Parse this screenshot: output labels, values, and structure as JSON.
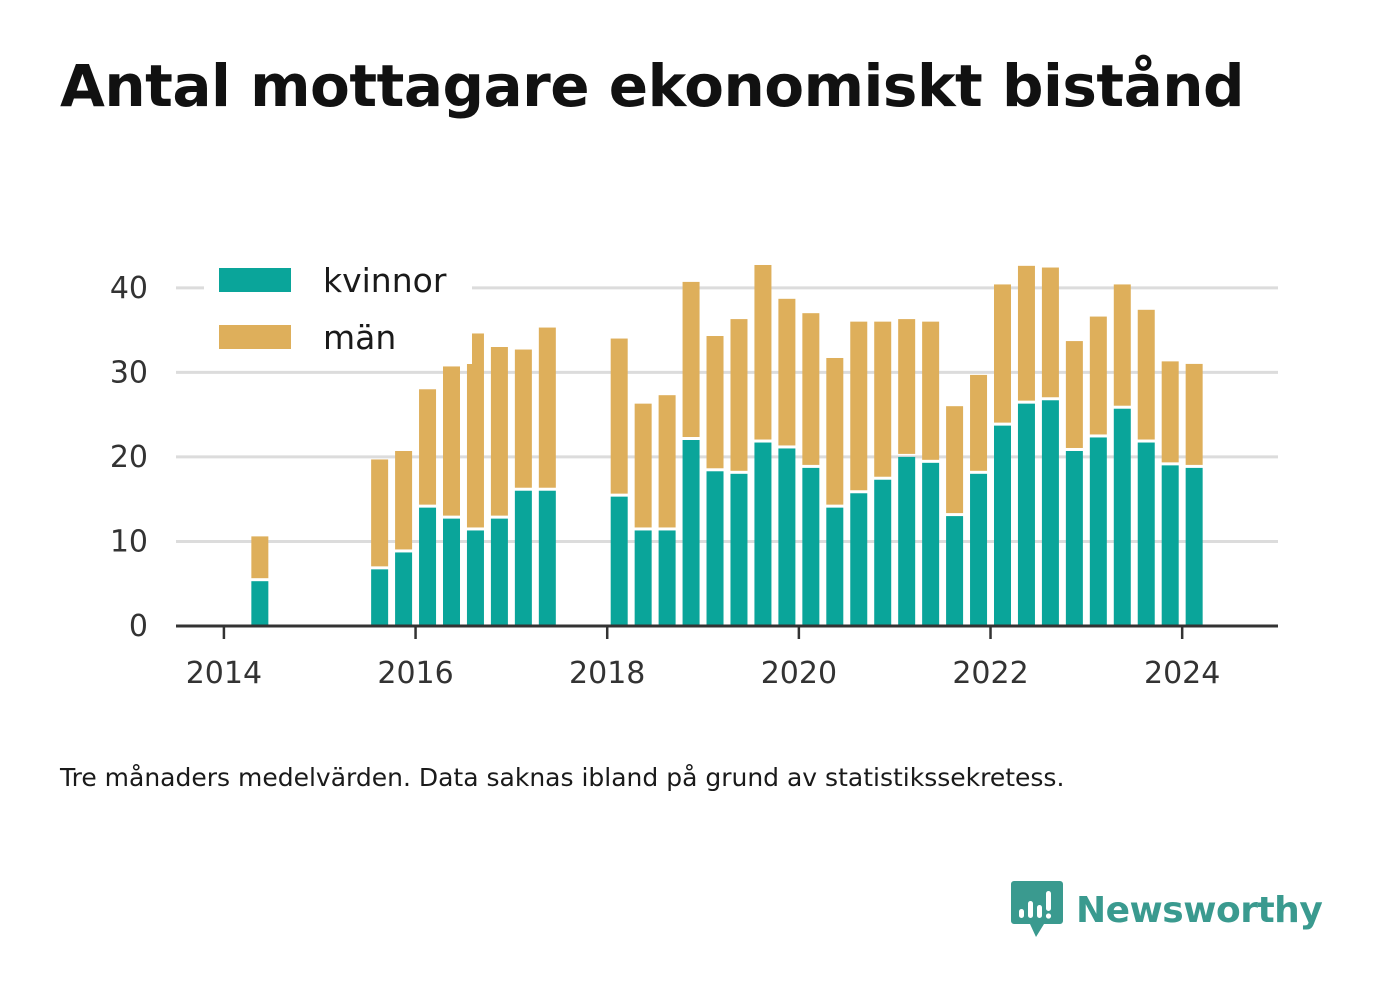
{
  "title": "Antal mottagare ekonomiskt bistånd",
  "caption": "Tre månaders medelvärden. Data saknas ibland på grund av statistikssekretess.",
  "brand": {
    "name": "Newsworthy",
    "icon": "bar-chart-speech-bubble-icon",
    "color": "#3a9a8f"
  },
  "chart_data": {
    "type": "bar",
    "stacked": true,
    "x_unit": "quarter",
    "x": [
      "2014-Q2",
      "2015-Q3",
      "2015-Q4",
      "2016-Q1",
      "2016-Q2",
      "2016-Q3",
      "2016-Q4",
      "2017-Q1",
      "2017-Q2",
      "2018-Q1",
      "2018-Q2",
      "2018-Q3",
      "2018-Q4",
      "2019-Q1",
      "2019-Q2",
      "2019-Q3",
      "2019-Q4",
      "2020-Q1",
      "2020-Q2",
      "2020-Q3",
      "2020-Q4",
      "2021-Q1",
      "2021-Q2",
      "2021-Q3",
      "2021-Q4",
      "2022-Q1",
      "2022-Q2",
      "2022-Q3",
      "2022-Q4",
      "2023-Q1",
      "2023-Q2",
      "2023-Q3",
      "2023-Q4",
      "2024-Q1"
    ],
    "series": [
      {
        "name": "kvinnor",
        "color": "#0aa59a",
        "values": [
          5.3,
          6.7,
          8.7,
          14,
          12.7,
          11.3,
          12.7,
          16,
          16,
          15.3,
          11.3,
          11.3,
          22,
          18.3,
          18,
          21.7,
          21,
          18.7,
          14,
          15.7,
          17.3,
          20,
          19.3,
          13,
          18,
          23.7,
          26.3,
          26.7,
          20.7,
          22.3,
          25.7,
          21.7,
          19,
          18.7
        ]
      },
      {
        "name": "män",
        "color": "#deaf5b",
        "values": [
          5.3,
          13,
          12,
          14,
          18,
          23.3,
          20.3,
          16.7,
          19.3,
          18.7,
          15,
          16,
          18.7,
          16,
          18.3,
          21,
          17.7,
          18.3,
          17.7,
          20.3,
          18.7,
          16.3,
          16.7,
          13,
          11.7,
          16.7,
          16.3,
          15.7,
          13,
          14.3,
          14.7,
          15.7,
          12.3,
          12.3
        ]
      }
    ],
    "x_ticks": [
      "2014",
      "2016",
      "2018",
      "2020",
      "2022",
      "2024"
    ],
    "y_ticks": [
      0,
      10,
      20,
      30,
      40
    ],
    "ylim": [
      0,
      44
    ],
    "xlim": [
      "2013-07",
      "2025-01"
    ],
    "grid": true,
    "legend": "top-left",
    "xlabel": "",
    "ylabel": ""
  }
}
